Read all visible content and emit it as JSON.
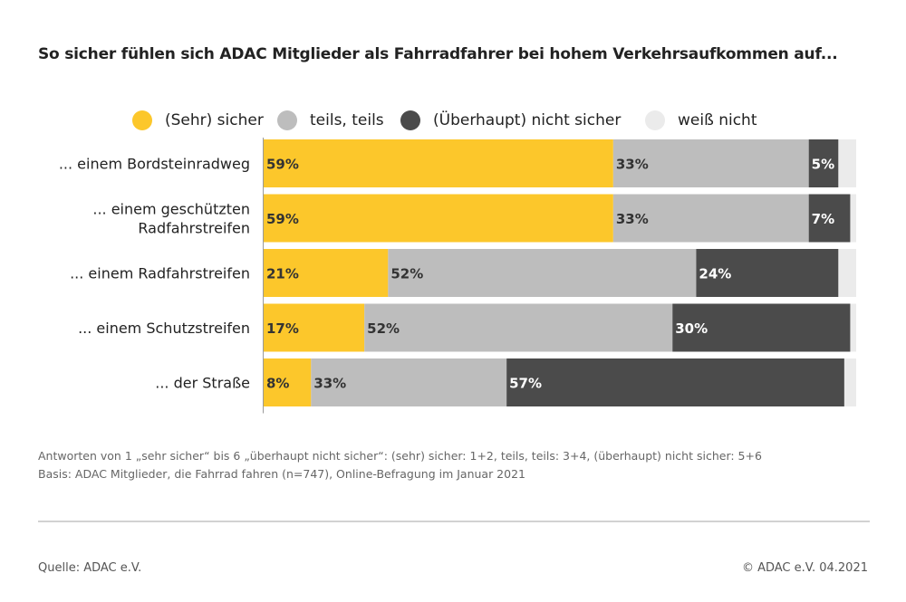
{
  "title": "So sicher fühlen sich ADAC Mitglieder als Fahrradfahrer bei hohem Verkehrsaufkommen auf...",
  "colors": {
    "sicher": "#fcc72b",
    "teils": "#bdbdbd",
    "nicht_sicher": "#4b4b4b",
    "weiss_nicht": "#ebebeb"
  },
  "chart_data": {
    "type": "bar",
    "orientation": "horizontal",
    "stacked": true,
    "xlim": [
      0,
      100
    ],
    "unit": "%",
    "grid": false,
    "legend_position": "top",
    "categories": [
      "... einem Bordsteinradweg",
      "... einem geschützten Radfahrstreifen",
      "... einem Radfahrstreifen",
      "... einem Schutzstreifen",
      "... der Straße"
    ],
    "series": [
      {
        "name": "(Sehr) sicher",
        "color": "#fcc72b",
        "values": [
          59,
          59,
          21,
          17,
          8
        ],
        "labels": [
          "59%",
          "59%",
          "21%",
          "17%",
          "8%"
        ]
      },
      {
        "name": "teils, teils",
        "color": "#bdbdbd",
        "values": [
          33,
          33,
          52,
          52,
          33
        ],
        "labels": [
          "33%",
          "33%",
          "52%",
          "52%",
          "33%"
        ]
      },
      {
        "name": "(Überhaupt) nicht sicher",
        "color": "#4b4b4b",
        "values": [
          5,
          7,
          24,
          30,
          57
        ],
        "labels": [
          "5%",
          "7%",
          "24%",
          "30%",
          "57%"
        ]
      },
      {
        "name": "weiß nicht",
        "color": "#ebebeb",
        "values": [
          3,
          1,
          3,
          1,
          2
        ],
        "labels": [
          "",
          "",
          "",
          "",
          ""
        ]
      }
    ]
  },
  "footnote": {
    "line1": "Antworten von 1 „sehr sicher“ bis 6 „überhaupt nicht sicher“: (sehr) sicher: 1+2, teils, teils: 3+4, (überhaupt) nicht sicher: 5+6",
    "line2": "Basis: ADAC Mitglieder, die Fahrrad fahren (n=747), Online-Befragung im Januar 2021"
  },
  "source": "Quelle: ADAC e.V.",
  "copyright": "© ADAC e.V. 04.2021"
}
